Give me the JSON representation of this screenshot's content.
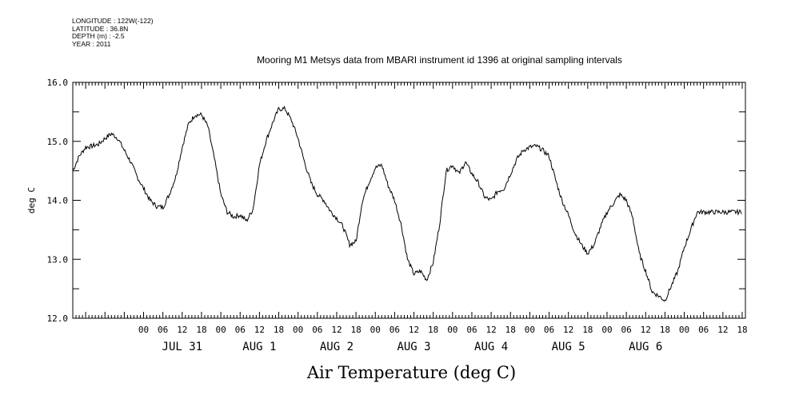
{
  "meta": {
    "longitude": "LONGITUDE : 122W(-122)",
    "latitude": "LATITUDE : 36.8N",
    "depth": "DEPTH (m) : -2.5",
    "year": "YEAR : 2011"
  },
  "chart_data": {
    "type": "line",
    "title": "Mooring M1 Metsys data from MBARI instrument id 1396 at original sampling intervals",
    "xlabel": "Air Temperature (deg C)",
    "ylabel": "deg C",
    "ylim": [
      12.0,
      16.0
    ],
    "yticks": [
      "12.0",
      "13.0",
      "14.0",
      "15.0",
      "16.0"
    ],
    "xlim_hours": [
      -22,
      187
    ],
    "hour_tick_labels": [
      "00",
      "06",
      "12",
      "18",
      "00",
      "06",
      "12",
      "18",
      "00",
      "06",
      "12",
      "18",
      "00",
      "06",
      "12",
      "18",
      "00",
      "06",
      "12",
      "18",
      "00",
      "06",
      "12",
      "18",
      "00",
      "06",
      "12",
      "18",
      "00",
      "06",
      "12",
      "18"
    ],
    "day_labels": [
      "JUL 31",
      "AUG  1",
      "AUG  2",
      "AUG  3",
      "AUG  4",
      "AUG  5",
      "AUG  6"
    ],
    "grid": false,
    "series": [
      {
        "x_hours": [
          -22,
          -20,
          -18,
          -16,
          -14,
          -12,
          -10,
          -8,
          -6,
          -4,
          -2,
          0,
          2,
          4,
          6,
          8,
          10,
          12,
          14,
          16,
          18,
          20,
          22,
          24,
          26,
          28,
          30,
          32,
          34,
          36,
          38,
          40,
          42,
          44,
          46,
          48,
          50,
          52,
          54,
          56,
          58,
          60,
          62,
          64,
          66,
          68,
          70,
          72,
          74,
          76,
          78,
          80,
          82,
          84,
          86,
          88,
          90,
          92,
          94,
          96,
          98,
          100,
          102,
          104,
          106,
          108,
          110,
          112,
          114,
          116,
          118,
          120,
          122,
          124,
          126,
          128,
          130,
          132,
          134,
          136,
          138,
          140,
          142,
          144,
          146,
          148,
          150,
          152,
          154,
          156,
          158,
          160,
          162,
          164,
          166,
          168,
          170,
          172,
          174,
          176,
          178,
          180,
          182,
          184,
          186
        ],
        "values": [
          14.5,
          14.75,
          14.9,
          14.92,
          14.95,
          15.05,
          15.13,
          15.05,
          14.85,
          14.65,
          14.4,
          14.2,
          14.0,
          13.9,
          13.88,
          14.1,
          14.4,
          14.9,
          15.3,
          15.45,
          15.45,
          15.25,
          14.7,
          14.1,
          13.8,
          13.72,
          13.75,
          13.65,
          13.85,
          14.6,
          15.0,
          15.3,
          15.55,
          15.55,
          15.35,
          15.05,
          14.65,
          14.3,
          14.1,
          14.0,
          13.82,
          13.7,
          13.55,
          13.25,
          13.3,
          14.0,
          14.3,
          14.55,
          14.6,
          14.25,
          14.0,
          13.6,
          13.0,
          12.75,
          12.8,
          12.65,
          12.95,
          13.6,
          14.5,
          14.6,
          14.45,
          14.65,
          14.45,
          14.3,
          14.05,
          14.0,
          14.15,
          14.2,
          14.45,
          14.7,
          14.85,
          14.9,
          14.92,
          14.85,
          14.75,
          14.35,
          14.0,
          13.75,
          13.45,
          13.25,
          13.1,
          13.25,
          13.55,
          13.8,
          13.95,
          14.1,
          14.0,
          13.7,
          13.1,
          12.8,
          12.45,
          12.38,
          12.3,
          12.55,
          12.8,
          13.2,
          13.5,
          13.8,
          13.8,
          13.8,
          13.8,
          13.8,
          13.8,
          13.8,
          13.8
        ]
      }
    ]
  }
}
